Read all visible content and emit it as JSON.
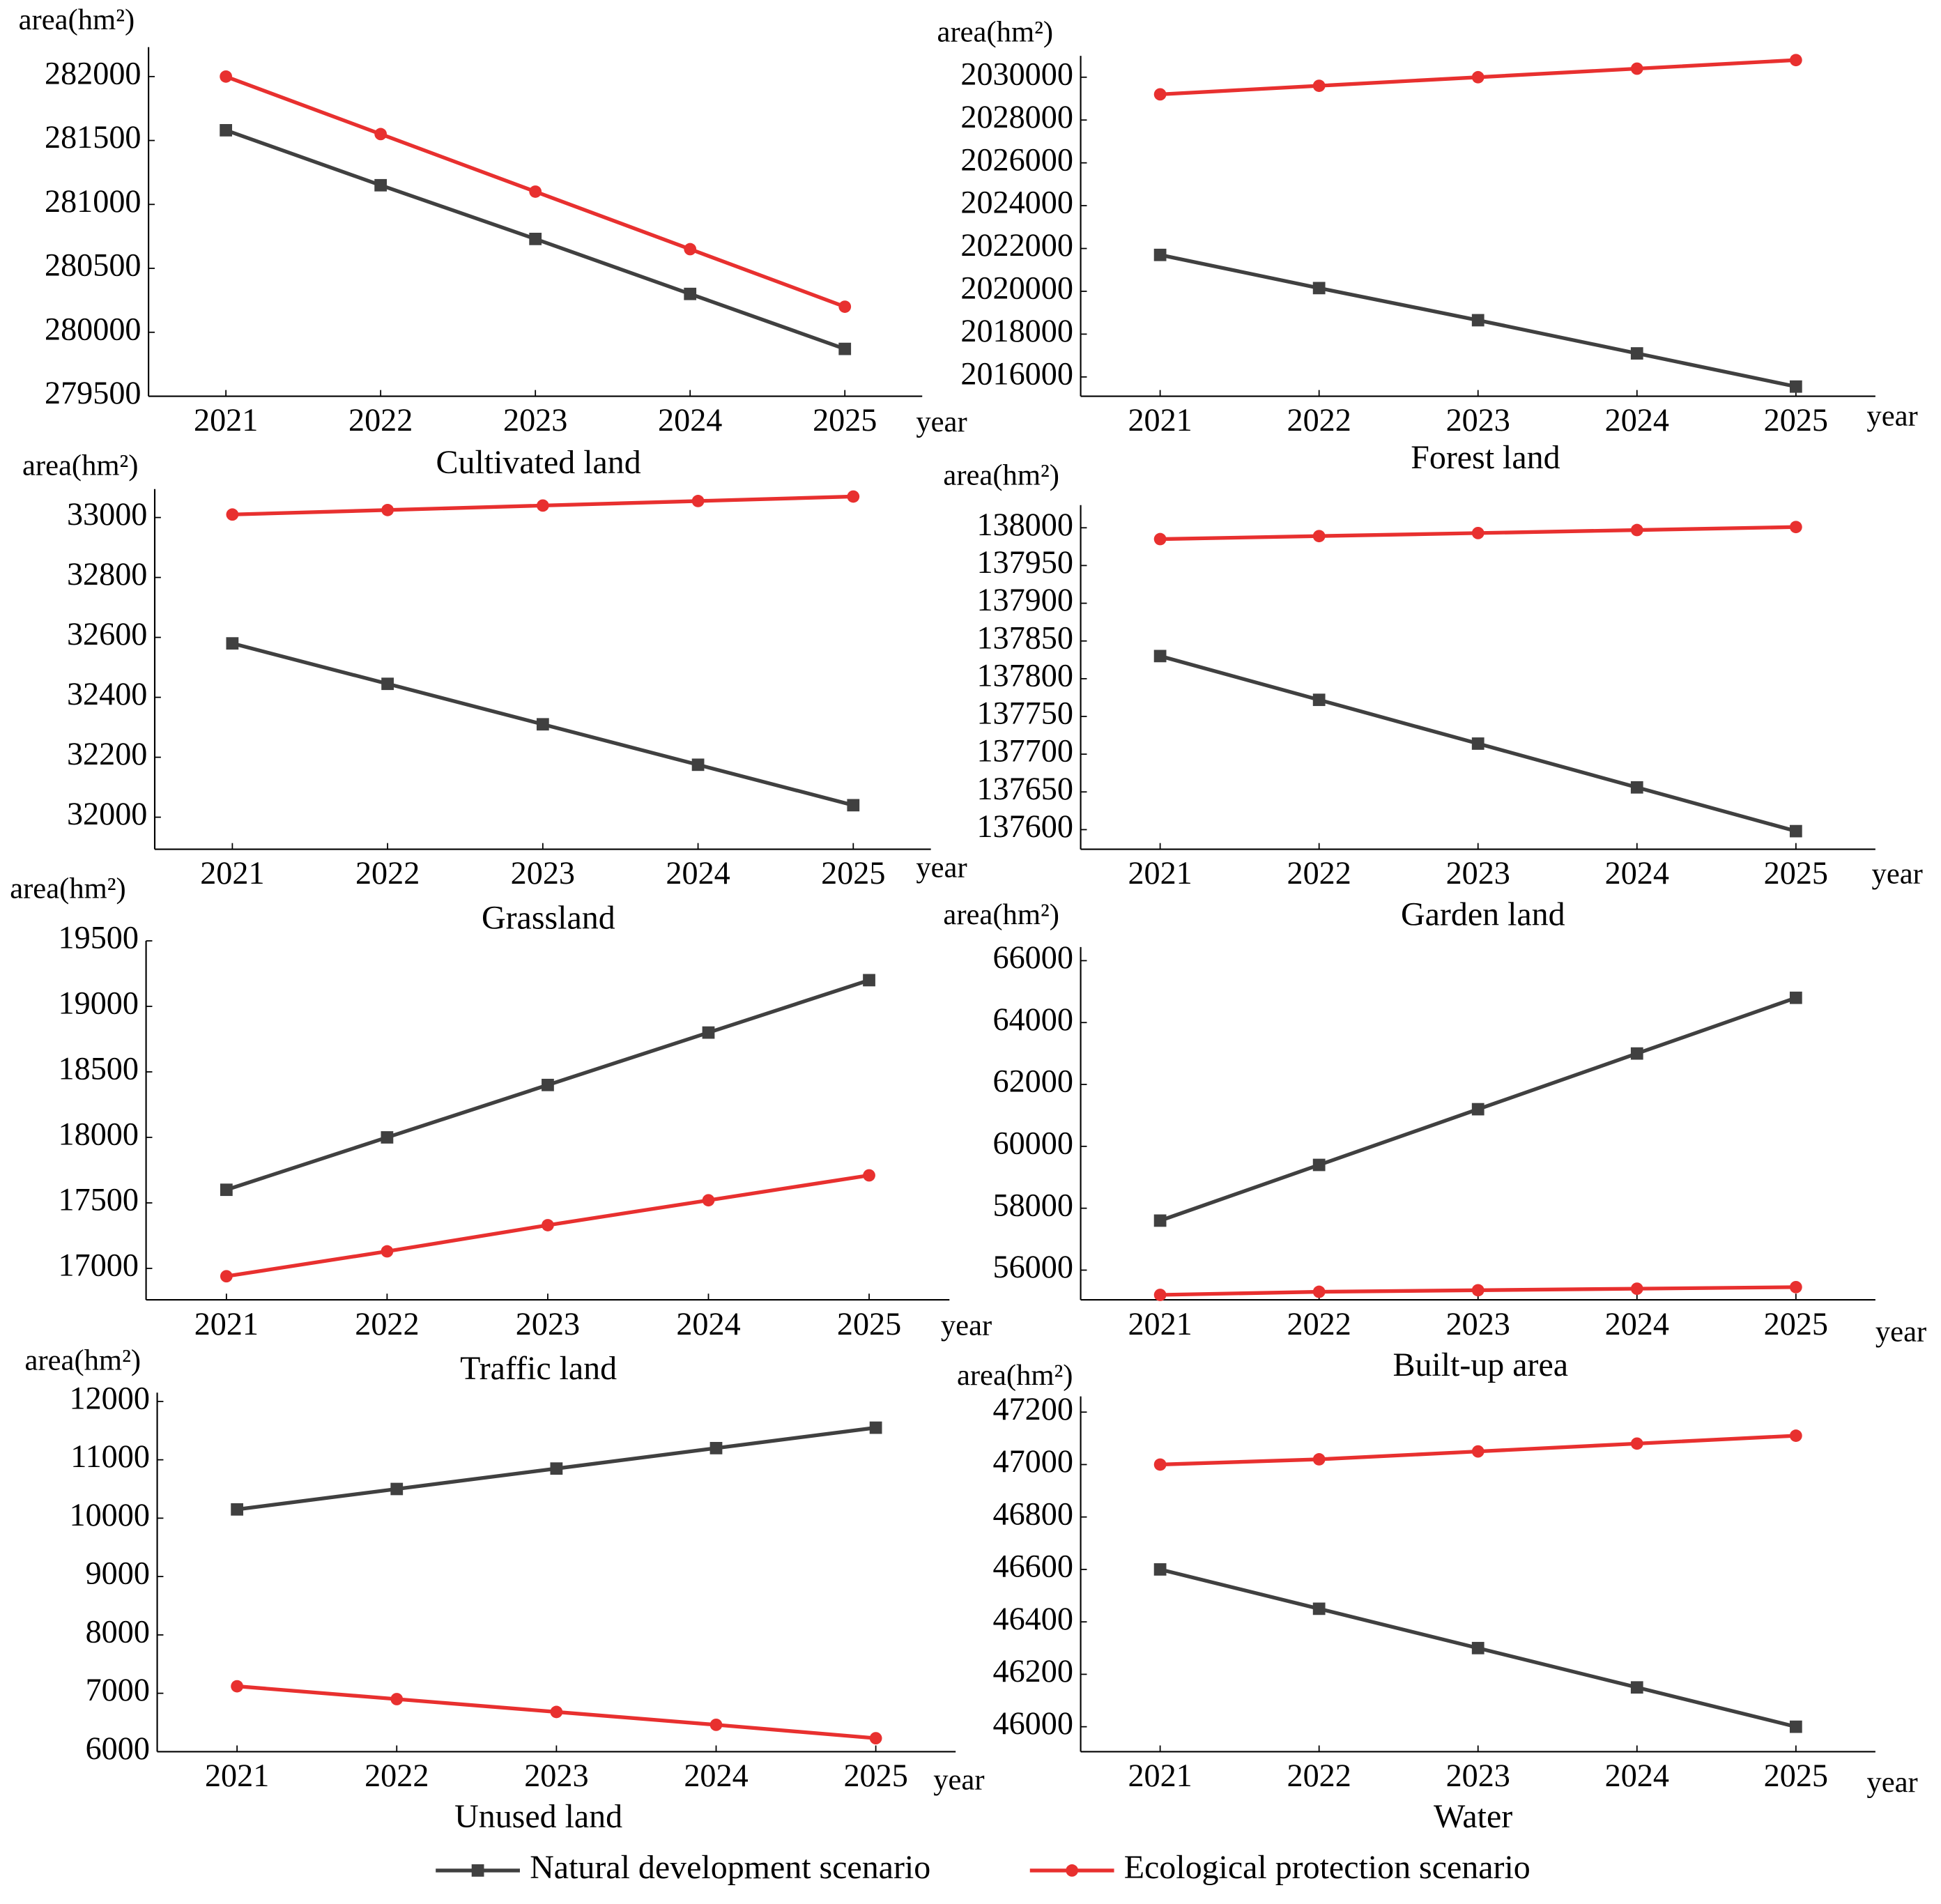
{
  "chart_data": [
    {
      "type": "line",
      "title": "Cultivated land",
      "ylabel": "area(hm²)",
      "xlabel": "year",
      "x": [
        2021,
        2022,
        2023,
        2024,
        2025
      ],
      "xlim": [
        2020.5,
        2025.5
      ],
      "xticks": [
        2021,
        2022,
        2023,
        2024,
        2025
      ],
      "ylim": [
        279500,
        282230
      ],
      "yticks": [
        279500,
        280000,
        280500,
        281000,
        281500,
        282000
      ],
      "series": [
        {
          "color": "#404040",
          "marker": "square",
          "values": [
            281580,
            281150,
            280730,
            280300,
            279870
          ]
        },
        {
          "color": "#e8302f",
          "marker": "circle",
          "values": [
            282000,
            281550,
            281100,
            280650,
            280200
          ]
        }
      ]
    },
    {
      "type": "line",
      "title": "Forest land",
      "ylabel": "area(hm²)",
      "xlabel": "year",
      "x": [
        2021,
        2022,
        2023,
        2024,
        2025
      ],
      "xlim": [
        2020.5,
        2025.5
      ],
      "xticks": [
        2021,
        2022,
        2023,
        2024,
        2025
      ],
      "ylim": [
        2015100,
        2031000
      ],
      "yticks": [
        2016000,
        2018000,
        2020000,
        2022000,
        2024000,
        2026000,
        2028000,
        2030000
      ],
      "series": [
        {
          "color": "#404040",
          "marker": "square",
          "values": [
            2021700,
            2020150,
            2018650,
            2017100,
            2015550
          ]
        },
        {
          "color": "#e8302f",
          "marker": "circle",
          "values": [
            2029200,
            2029600,
            2030000,
            2030400,
            2030800
          ]
        }
      ]
    },
    {
      "type": "line",
      "title": "Grassland",
      "ylabel": "area(hm²)",
      "xlabel": "year",
      "x": [
        2021,
        2022,
        2023,
        2024,
        2025
      ],
      "xlim": [
        2020.5,
        2025.5
      ],
      "xticks": [
        2021,
        2022,
        2023,
        2024,
        2025
      ],
      "ylim": [
        31893,
        33095
      ],
      "yticks": [
        32000,
        32200,
        32400,
        32600,
        32800,
        33000
      ],
      "series": [
        {
          "color": "#404040",
          "marker": "square",
          "values": [
            32580,
            32445,
            32310,
            32175,
            32040
          ]
        },
        {
          "color": "#e8302f",
          "marker": "circle",
          "values": [
            33010,
            33025,
            33040,
            33055,
            33070
          ]
        }
      ]
    },
    {
      "type": "line",
      "title": "Garden land",
      "ylabel": "area(hm²)",
      "xlabel": "year",
      "x": [
        2021,
        2022,
        2023,
        2024,
        2025
      ],
      "xlim": [
        2020.5,
        2025.5
      ],
      "xticks": [
        2021,
        2022,
        2023,
        2024,
        2025
      ],
      "ylim": [
        137574,
        138030
      ],
      "yticks": [
        137600,
        137650,
        137700,
        137750,
        137800,
        137850,
        137900,
        137950,
        138000
      ],
      "series": [
        {
          "color": "#404040",
          "marker": "square",
          "values": [
            137830,
            137772,
            137714,
            137656,
            137598
          ]
        },
        {
          "color": "#e8302f",
          "marker": "circle",
          "values": [
            137985,
            137989,
            137993,
            137997,
            138001
          ]
        }
      ]
    },
    {
      "type": "line",
      "title": "Traffic land",
      "ylabel": "area(hm²)",
      "xlabel": "year",
      "x": [
        2021,
        2022,
        2023,
        2024,
        2025
      ],
      "xlim": [
        2020.5,
        2025.5
      ],
      "xticks": [
        2021,
        2022,
        2023,
        2024,
        2025
      ],
      "ylim": [
        16760,
        19500
      ],
      "yticks": [
        17000,
        17500,
        18000,
        18500,
        19000,
        19500
      ],
      "series": [
        {
          "color": "#404040",
          "marker": "square",
          "values": [
            17600,
            18000,
            18400,
            18800,
            19200
          ]
        },
        {
          "color": "#e8302f",
          "marker": "circle",
          "values": [
            16940,
            17130,
            17330,
            17520,
            17710
          ]
        }
      ]
    },
    {
      "type": "line",
      "title": "Built-up area",
      "ylabel": "area(hm²)",
      "xlabel": "year",
      "x": [
        2021,
        2022,
        2023,
        2024,
        2025
      ],
      "xlim": [
        2020.5,
        2025.5
      ],
      "xticks": [
        2021,
        2022,
        2023,
        2024,
        2025
      ],
      "ylim": [
        55040,
        66440
      ],
      "yticks": [
        56000,
        58000,
        60000,
        62000,
        64000,
        66000
      ],
      "series": [
        {
          "color": "#404040",
          "marker": "square",
          "values": [
            57600,
            59400,
            61200,
            63000,
            64800
          ]
        },
        {
          "color": "#e8302f",
          "marker": "circle",
          "values": [
            55200,
            55300,
            55350,
            55400,
            55450
          ]
        }
      ]
    },
    {
      "type": "line",
      "title": "Unused land",
      "ylabel": "area(hm²)",
      "xlabel": "year",
      "x": [
        2021,
        2022,
        2023,
        2024,
        2025
      ],
      "xlim": [
        2020.5,
        2025.5
      ],
      "xticks": [
        2021,
        2022,
        2023,
        2024,
        2025
      ],
      "ylim": [
        6000,
        12150
      ],
      "yticks": [
        6000,
        7000,
        8000,
        9000,
        10000,
        11000,
        12000
      ],
      "series": [
        {
          "color": "#404040",
          "marker": "square",
          "values": [
            10150,
            10500,
            10850,
            11200,
            11550
          ]
        },
        {
          "color": "#e8302f",
          "marker": "circle",
          "values": [
            7120,
            6900,
            6680,
            6460,
            6230
          ]
        }
      ]
    },
    {
      "type": "line",
      "title": "Water",
      "ylabel": "area(hm²)",
      "xlabel": "year",
      "x": [
        2021,
        2022,
        2023,
        2024,
        2025
      ],
      "xlim": [
        2020.5,
        2025.5
      ],
      "xticks": [
        2021,
        2022,
        2023,
        2024,
        2025
      ],
      "ylim": [
        45905,
        47260
      ],
      "yticks": [
        46000,
        46200,
        46400,
        46600,
        46800,
        47000,
        47200
      ],
      "series": [
        {
          "color": "#404040",
          "marker": "square",
          "values": [
            46600,
            46450,
            46300,
            46150,
            46000
          ]
        },
        {
          "color": "#e8302f",
          "marker": "circle",
          "values": [
            47000,
            47020,
            47050,
            47080,
            47110
          ]
        }
      ]
    }
  ],
  "legend": [
    {
      "name": "Natural development scenario",
      "color": "#404040",
      "marker": "square"
    },
    {
      "name": "Ecological protection scenario",
      "color": "#e8302f",
      "marker": "circle"
    }
  ]
}
